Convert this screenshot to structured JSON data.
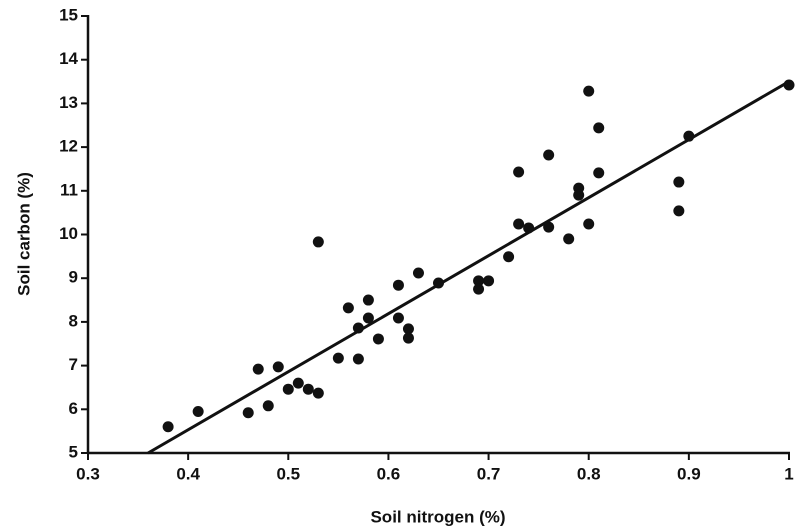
{
  "chart_data": {
    "type": "scatter",
    "x_label": "Soil nitrogen  (%)",
    "y_label": "Soil carbon  (%)",
    "color": "#111111",
    "x": [
      0.38,
      0.41,
      0.46,
      0.47,
      0.48,
      0.49,
      0.5,
      0.51,
      0.52,
      0.53,
      0.53,
      0.55,
      0.56,
      0.57,
      0.57,
      0.58,
      0.58,
      0.59,
      0.61,
      0.61,
      0.62,
      0.62,
      0.63,
      0.65,
      0.69,
      0.69,
      0.7,
      0.72,
      0.73,
      0.73,
      0.74,
      0.76,
      0.76,
      0.78,
      0.79,
      0.79,
      0.8,
      0.8,
      0.81,
      0.81,
      0.89,
      0.89,
      0.9,
      1.0
    ],
    "values": [
      5.6,
      5.95,
      5.92,
      6.92,
      6.08,
      6.97,
      6.46,
      6.6,
      6.46,
      6.37,
      9.83,
      7.17,
      8.32,
      7.86,
      7.15,
      8.5,
      8.09,
      7.61,
      8.84,
      8.09,
      7.84,
      7.63,
      9.12,
      8.89,
      8.94,
      8.75,
      8.94,
      9.49,
      11.43,
      10.24,
      10.15,
      11.82,
      10.17,
      9.9,
      11.06,
      10.9,
      13.28,
      10.24,
      12.44,
      11.41,
      11.2,
      10.54,
      12.25,
      13.42
    ],
    "trend_line": {
      "x": [
        0.36,
        1
      ],
      "y": [
        5,
        13.5
      ]
    },
    "xlim": [
      0.3,
      1
    ],
    "xticks": [
      0.3,
      0.4,
      0.5,
      0.6,
      0.7,
      0.8,
      0.9,
      1
    ],
    "ylim": [
      5,
      15
    ],
    "yticks": [
      5,
      6,
      7,
      8,
      9,
      10,
      11,
      12,
      13,
      14,
      15
    ],
    "grid": false
  }
}
